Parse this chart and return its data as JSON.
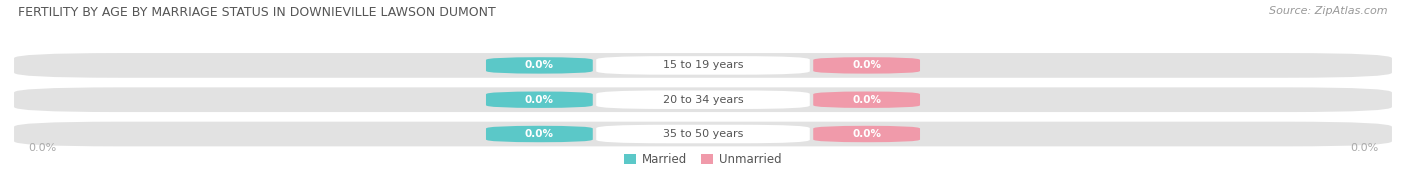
{
  "title": "FERTILITY BY AGE BY MARRIAGE STATUS IN DOWNIEVILLE LAWSON DUMONT",
  "source": "Source: ZipAtlas.com",
  "categories": [
    "15 to 19 years",
    "20 to 34 years",
    "35 to 50 years"
  ],
  "married_values": [
    0.0,
    0.0,
    0.0
  ],
  "unmarried_values": [
    0.0,
    0.0,
    0.0
  ],
  "married_color": "#5bc8c8",
  "unmarried_color": "#f09aaa",
  "bar_bg_color": "#e2e2e2",
  "center_label_bg": "#ffffff",
  "title_color": "#555555",
  "source_color": "#999999",
  "axis_label_color": "#aaaaaa",
  "category_label_color": "#555555",
  "figsize": [
    14.06,
    1.96
  ],
  "dpi": 100
}
